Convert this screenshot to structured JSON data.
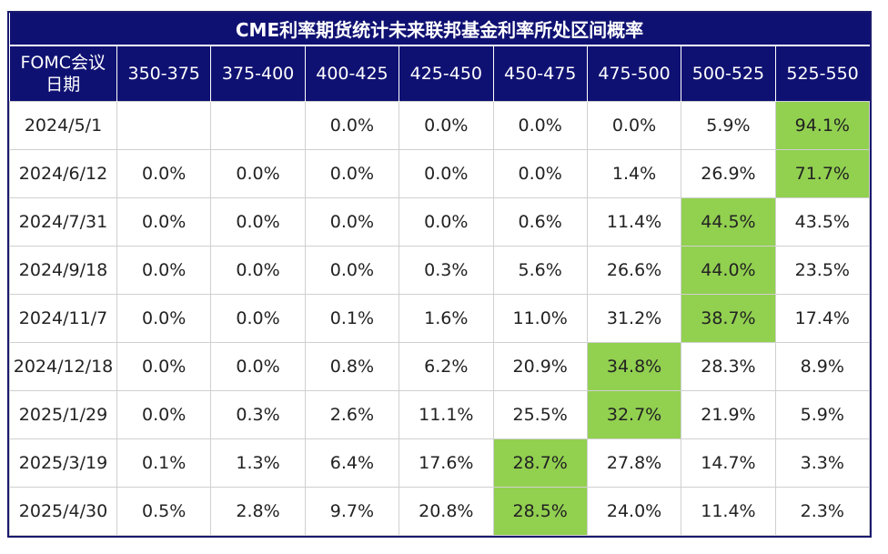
{
  "title": "CME利率期货统计未来联邦基金利率所处区间概率",
  "header": {
    "first_col": [
      "FOMC会议",
      "日期"
    ],
    "ranges": [
      "350-375",
      "375-400",
      "400-425",
      "425-450",
      "450-475",
      "475-500",
      "500-525",
      "525-550"
    ]
  },
  "colors": {
    "header_bg": "#0f1172",
    "highlight": "#92d050"
  },
  "rows": [
    {
      "date": "2024/5/1",
      "cells": [
        "",
        "",
        "0.0%",
        "0.0%",
        "0.0%",
        "0.0%",
        "5.9%",
        "94.1%"
      ],
      "highlight": 7
    },
    {
      "date": "2024/6/12",
      "cells": [
        "0.0%",
        "0.0%",
        "0.0%",
        "0.0%",
        "0.0%",
        "1.4%",
        "26.9%",
        "71.7%"
      ],
      "highlight": 7
    },
    {
      "date": "2024/7/31",
      "cells": [
        "0.0%",
        "0.0%",
        "0.0%",
        "0.0%",
        "0.6%",
        "11.4%",
        "44.5%",
        "43.5%"
      ],
      "highlight": 6
    },
    {
      "date": "2024/9/18",
      "cells": [
        "0.0%",
        "0.0%",
        "0.0%",
        "0.3%",
        "5.6%",
        "26.6%",
        "44.0%",
        "23.5%"
      ],
      "highlight": 6
    },
    {
      "date": "2024/11/7",
      "cells": [
        "0.0%",
        "0.0%",
        "0.1%",
        "1.6%",
        "11.0%",
        "31.2%",
        "38.7%",
        "17.4%"
      ],
      "highlight": 6
    },
    {
      "date": "2024/12/18",
      "cells": [
        "0.0%",
        "0.0%",
        "0.8%",
        "6.2%",
        "20.9%",
        "34.8%",
        "28.3%",
        "8.9%"
      ],
      "highlight": 5
    },
    {
      "date": "2025/1/29",
      "cells": [
        "0.0%",
        "0.3%",
        "2.6%",
        "11.1%",
        "25.5%",
        "32.7%",
        "21.9%",
        "5.9%"
      ],
      "highlight": 5
    },
    {
      "date": "2025/3/19",
      "cells": [
        "0.1%",
        "1.3%",
        "6.4%",
        "17.6%",
        "28.7%",
        "27.8%",
        "14.7%",
        "3.3%"
      ],
      "highlight": 4
    },
    {
      "date": "2025/4/30",
      "cells": [
        "0.5%",
        "2.8%",
        "9.7%",
        "20.8%",
        "28.5%",
        "24.0%",
        "11.4%",
        "2.3%"
      ],
      "highlight": 4
    }
  ],
  "chart_data": {
    "type": "table",
    "title": "CME利率期货统计未来联邦基金利率所处区间概率",
    "columns": [
      "FOMC会议日期",
      "350-375",
      "375-400",
      "400-425",
      "425-450",
      "450-475",
      "475-500",
      "500-525",
      "525-550"
    ],
    "rows": [
      [
        "2024/5/1",
        "",
        "",
        "0.0%",
        "0.0%",
        "0.0%",
        "0.0%",
        "5.9%",
        "94.1%"
      ],
      [
        "2024/6/12",
        "0.0%",
        "0.0%",
        "0.0%",
        "0.0%",
        "0.0%",
        "1.4%",
        "26.9%",
        "71.7%"
      ],
      [
        "2024/7/31",
        "0.0%",
        "0.0%",
        "0.0%",
        "0.0%",
        "0.6%",
        "11.4%",
        "44.5%",
        "43.5%"
      ],
      [
        "2024/9/18",
        "0.0%",
        "0.0%",
        "0.0%",
        "0.3%",
        "5.6%",
        "26.6%",
        "44.0%",
        "23.5%"
      ],
      [
        "2024/11/7",
        "0.0%",
        "0.0%",
        "0.1%",
        "1.6%",
        "11.0%",
        "31.2%",
        "38.7%",
        "17.4%"
      ],
      [
        "2024/12/18",
        "0.0%",
        "0.0%",
        "0.8%",
        "6.2%",
        "20.9%",
        "34.8%",
        "28.3%",
        "8.9%"
      ],
      [
        "2025/1/29",
        "0.0%",
        "0.3%",
        "2.6%",
        "11.1%",
        "25.5%",
        "32.7%",
        "21.9%",
        "5.9%"
      ],
      [
        "2025/3/19",
        "0.1%",
        "1.3%",
        "6.4%",
        "17.6%",
        "28.7%",
        "27.8%",
        "14.7%",
        "3.3%"
      ],
      [
        "2025/4/30",
        "0.5%",
        "2.8%",
        "9.7%",
        "20.8%",
        "28.5%",
        "24.0%",
        "11.4%",
        "2.3%"
      ]
    ]
  }
}
